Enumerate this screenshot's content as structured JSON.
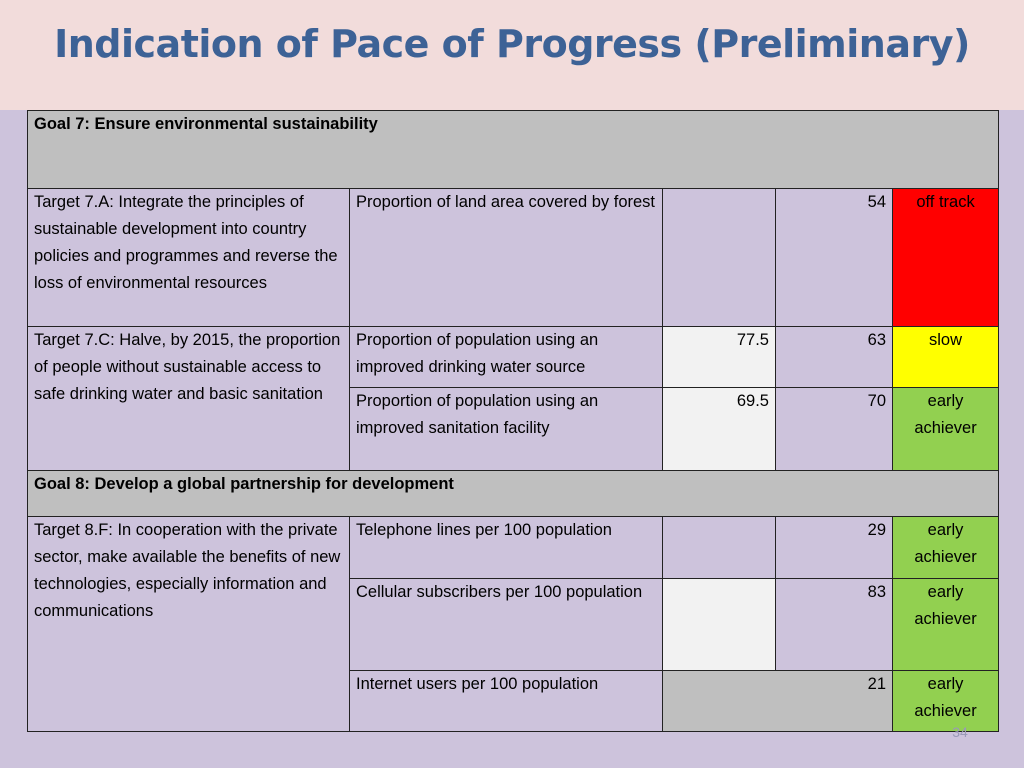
{
  "slide": {
    "title": "Indication of Pace of Progress (Preliminary)",
    "page_number": "34"
  },
  "table": {
    "goals": [
      {
        "label": "Goal 7: Ensure environmental sustainability",
        "targets": [
          {
            "label": "Target 7.A: Integrate the principles of sustainable development into country policies and programmes and reverse the loss of environmental resources",
            "indicators": [
              {
                "name": "Proportion of land area covered by forest",
                "value_a": "",
                "value_b": "54",
                "status": "off track"
              }
            ]
          },
          {
            "label": "Target 7.C: Halve, by 2015, the proportion of people without sustainable access to safe drinking water and basic sanitation",
            "indicators": [
              {
                "name": "Proportion of population using an improved drinking water source",
                "value_a": "77.5",
                "value_b": "63",
                "status": "slow"
              },
              {
                "name": "Proportion of population using an improved sanitation facility",
                "value_a": "69.5",
                "value_b": "70",
                "status": "early achiever"
              }
            ]
          }
        ]
      },
      {
        "label": "Goal 8: Develop a global partnership for development",
        "targets": [
          {
            "label": "Target 8.F: In cooperation with the private sector, make available the benefits of new technologies, especially information and communications",
            "indicators": [
              {
                "name": "Telephone lines per 100 population",
                "value_a": "",
                "value_b": "29",
                "status": "early achiever"
              },
              {
                "name": "Cellular subscribers per 100 population",
                "value_a": "",
                "value_b": "83",
                "status": "early achiever"
              },
              {
                "name": "Internet users per 100 population",
                "value_a": "",
                "value_b": "21",
                "status": "early achiever"
              }
            ]
          }
        ]
      }
    ]
  },
  "colors": {
    "title": "#3d6296",
    "title_band": "#f2dcdb",
    "slide_background": "#cdc3dc",
    "header_grey": "#bfbfbf",
    "off_track": "#ff0000",
    "slow": "#ffff00",
    "early_achiever": "#92d050"
  }
}
